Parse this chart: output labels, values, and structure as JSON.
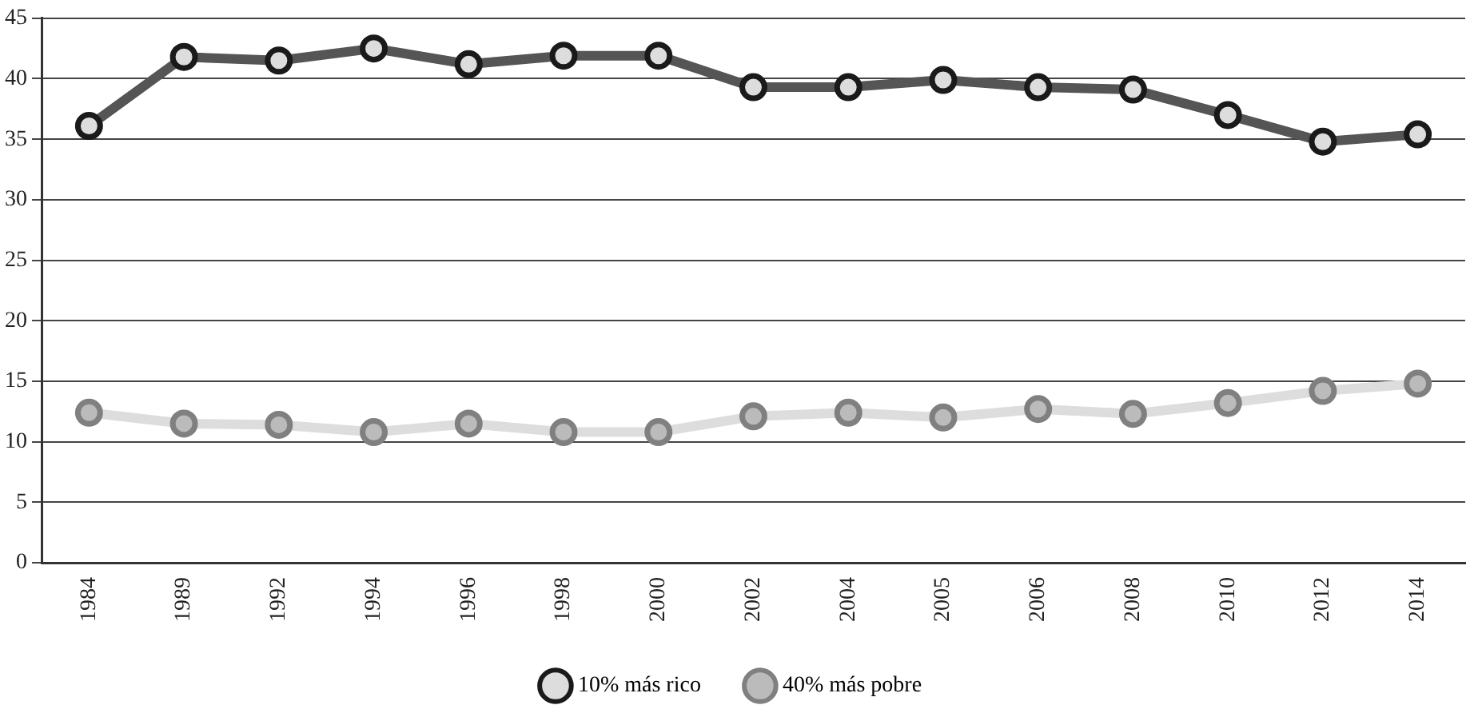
{
  "chart_data": {
    "type": "line",
    "categories": [
      "1984",
      "1989",
      "1992",
      "1994",
      "1996",
      "1998",
      "2000",
      "2002",
      "2004",
      "2005",
      "2006",
      "2008",
      "2010",
      "2012",
      "2014"
    ],
    "series": [
      {
        "name": "10% más rico",
        "color": "#555555",
        "values": [
          36.1,
          41.8,
          41.5,
          42.5,
          41.2,
          41.9,
          41.9,
          39.3,
          39.3,
          39.9,
          39.3,
          39.1,
          37.0,
          34.8,
          35.4
        ]
      },
      {
        "name": "40% más pobre",
        "color": "#dddddd",
        "values": [
          12.4,
          11.5,
          11.4,
          10.8,
          11.5,
          10.8,
          10.8,
          12.1,
          12.4,
          12.0,
          12.7,
          12.3,
          13.2,
          14.2,
          14.8
        ]
      }
    ],
    "ylim": [
      0,
      45
    ],
    "yticks": [
      0,
      5,
      10,
      15,
      20,
      25,
      30,
      35,
      40,
      45
    ],
    "grid": "y",
    "legend": "bottom",
    "marker": "circle",
    "line_style": "solid"
  }
}
